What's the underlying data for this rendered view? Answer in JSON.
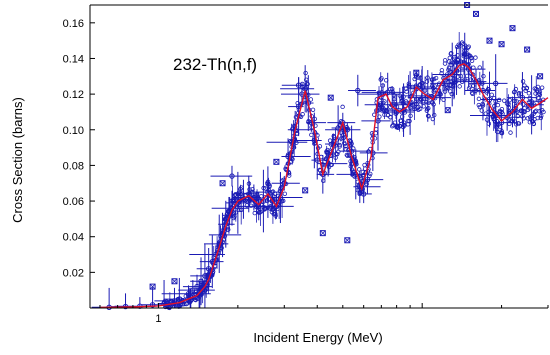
{
  "chart_data": {
    "type": "scatter",
    "title": "",
    "annotation": "232-Th(n,f)",
    "xlabel": "Incident Energy (MeV)",
    "ylabel": "Cross Section (barns)",
    "x_scale": "log",
    "xlim": [
      0.55,
      30
    ],
    "ylim": [
      0,
      0.17
    ],
    "x_ticks": [
      {
        "value": 1,
        "label": "1"
      }
    ],
    "y_ticks": [
      {
        "value": 0.02,
        "label": "0.02"
      },
      {
        "value": 0.04,
        "label": "0.04"
      },
      {
        "value": 0.06,
        "label": "0.06"
      },
      {
        "value": 0.08,
        "label": "0.08"
      },
      {
        "value": 0.1,
        "label": "0.10"
      },
      {
        "value": 0.12,
        "label": "0.12"
      },
      {
        "value": 0.14,
        "label": "0.14"
      },
      {
        "value": 0.16,
        "label": "0.16"
      }
    ],
    "grid": false,
    "colors": {
      "experimental": "#1a1ab4",
      "evaluation": "#e0122a",
      "axes": "#000000"
    },
    "series": [
      {
        "kind": "evaluation-curve",
        "x": [
          0.6,
          0.8,
          1.0,
          1.2,
          1.4,
          1.5,
          1.55,
          1.6,
          1.7,
          1.8,
          1.9,
          2.0,
          2.2,
          2.4,
          2.6,
          2.8,
          3.0,
          3.3,
          3.6,
          3.9,
          4.2,
          4.6,
          5.0,
          5.4,
          5.9,
          6.4,
          6.8,
          7.3,
          7.7,
          8.2,
          8.8,
          9.5,
          10.2,
          11,
          12,
          13,
          13.8,
          14.4,
          15,
          16,
          17,
          18.5,
          20,
          22,
          24,
          26,
          28,
          30
        ],
        "y": [
          0.0003,
          0.0006,
          0.0012,
          0.003,
          0.007,
          0.012,
          0.016,
          0.022,
          0.034,
          0.046,
          0.055,
          0.06,
          0.063,
          0.058,
          0.064,
          0.057,
          0.068,
          0.1,
          0.122,
          0.1,
          0.075,
          0.09,
          0.104,
          0.085,
          0.067,
          0.085,
          0.118,
          0.12,
          0.113,
          0.11,
          0.113,
          0.124,
          0.12,
          0.117,
          0.128,
          0.131,
          0.136,
          0.137,
          0.135,
          0.128,
          0.12,
          0.111,
          0.105,
          0.11,
          0.117,
          0.112,
          0.115,
          0.118
        ]
      },
      {
        "kind": "experimental-points",
        "x": [
          0.65,
          0.75,
          0.85,
          0.95,
          1.05,
          1.15,
          1.2,
          1.3,
          1.35,
          1.4,
          1.45,
          1.5,
          1.55,
          1.6,
          1.65,
          1.7,
          1.75,
          1.8,
          1.85,
          1.9,
          2.0,
          2.1,
          2.2,
          2.3,
          2.4,
          2.5,
          2.6,
          2.7,
          2.8,
          2.9,
          3.0,
          3.1,
          3.2,
          3.3,
          3.4,
          3.5,
          3.6,
          3.7,
          3.8,
          3.9,
          4.0,
          4.2,
          4.4,
          4.6,
          4.8,
          5.0,
          5.2,
          5.4,
          5.6,
          5.8,
          6.0,
          6.2,
          6.5,
          6.8,
          7.1,
          7.4,
          7.7,
          8.0,
          8.5,
          9.0,
          9.5,
          10,
          10.5,
          11,
          12,
          13,
          13.5,
          14,
          14.5,
          15,
          16,
          17,
          18,
          19,
          20,
          21,
          22,
          24,
          26,
          28,
          1.9,
          3.4,
          5.7,
          13.2,
          19.0
        ],
        "y": [
          0.0004,
          0.0008,
          0.001,
          0.0018,
          0.0025,
          0.004,
          0.005,
          0.008,
          0.01,
          0.012,
          0.015,
          0.018,
          0.022,
          0.026,
          0.03,
          0.036,
          0.041,
          0.047,
          0.052,
          0.056,
          0.059,
          0.061,
          0.064,
          0.062,
          0.057,
          0.06,
          0.065,
          0.06,
          0.057,
          0.062,
          0.07,
          0.085,
          0.093,
          0.1,
          0.113,
          0.12,
          0.123,
          0.115,
          0.104,
          0.094,
          0.083,
          0.075,
          0.081,
          0.092,
          0.101,
          0.104,
          0.1,
          0.088,
          0.075,
          0.068,
          0.064,
          0.072,
          0.087,
          0.105,
          0.12,
          0.121,
          0.114,
          0.11,
          0.111,
          0.115,
          0.123,
          0.124,
          0.119,
          0.118,
          0.126,
          0.131,
          0.133,
          0.138,
          0.137,
          0.134,
          0.127,
          0.122,
          0.117,
          0.108,
          0.104,
          0.107,
          0.11,
          0.118,
          0.114,
          0.116,
          0.074,
          0.125,
          0.122,
          0.128,
          0.126
        ]
      },
      {
        "kind": "outlier-points",
        "x": [
          0.95,
          1.15,
          1.55,
          1.75,
          2.8,
          3.6,
          4.2,
          4.5,
          5.2,
          9.5,
          12.5,
          13.0,
          14.8,
          16,
          18,
          20,
          22,
          25,
          28
        ],
        "y": [
          0.012,
          0.015,
          0.018,
          0.07,
          0.082,
          0.066,
          0.042,
          0.118,
          0.038,
          0.132,
          0.111,
          0.125,
          0.17,
          0.165,
          0.15,
          0.148,
          0.157,
          0.145,
          0.13
        ]
      }
    ]
  }
}
